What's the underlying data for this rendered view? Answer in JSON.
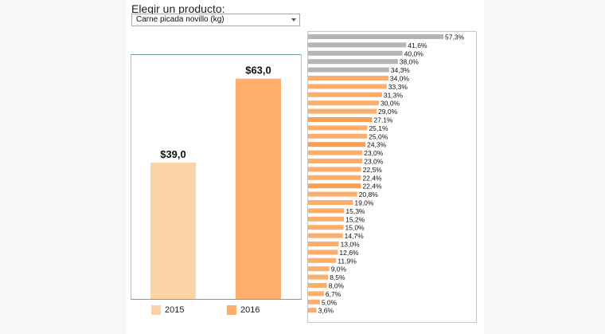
{
  "selector": {
    "prompt": "Elegir un producto:",
    "selected": "Carne picada novillo (kg)"
  },
  "colors": {
    "y2015": "#fdd3a8",
    "y2016": "#fcae6a",
    "gray": "#b5b5b5"
  },
  "chart_data": [
    {
      "type": "bar",
      "categories": [
        "2015",
        "2016"
      ],
      "values": [
        39.0,
        63.0
      ],
      "value_labels": [
        "$39,0",
        "$63,0"
      ],
      "ylim": [
        0,
        70
      ],
      "legend": [
        "2015",
        "2016"
      ],
      "legend_placement": "bottom"
    },
    {
      "type": "bar",
      "orientation": "horizontal",
      "values": [
        57.3,
        41.6,
        40.0,
        38.0,
        34.3,
        34.0,
        33.3,
        31.3,
        30.0,
        29.0,
        27.1,
        25.1,
        25.0,
        24.3,
        23.0,
        23.0,
        22.5,
        22.4,
        22.4,
        20.8,
        19.0,
        15.3,
        15.2,
        15.0,
        14.7,
        13.0,
        12.6,
        11.9,
        9.0,
        8.5,
        8.0,
        6.7,
        5.0,
        3.6
      ],
      "value_labels": [
        "57,3%",
        "41,6%",
        "40,0%",
        "38,0%",
        "34,3%",
        "34,0%",
        "33,3%",
        "31,3%",
        "30,0%",
        "29,0%",
        "27,1%",
        "25,1%",
        "25,0%",
        "24,3%",
        "23,0%",
        "23,0%",
        "22,5%",
        "22,4%",
        "22,4%",
        "20,8%",
        "19,0%",
        "15,3%",
        "15,2%",
        "15,0%",
        "14,7%",
        "13,0%",
        "12,6%",
        "11,9%",
        "9,0%",
        "8,5%",
        "8,0%",
        "6,7%",
        "5,0%",
        "3,6%"
      ],
      "highlight": [
        "gray",
        "gray",
        "gray",
        "gray",
        "gray",
        "orange",
        "orange",
        "orange",
        "orange",
        "orange",
        "highlight",
        "orange",
        "orange",
        "highlight",
        "orange",
        "orange",
        "orange",
        "orange",
        "highlight",
        "orange",
        "orange",
        "orange",
        "orange",
        "orange",
        "orange",
        "orange",
        "orange",
        "orange",
        "orange",
        "orange",
        "orange",
        "orange",
        "orange",
        "orange"
      ]
    }
  ]
}
